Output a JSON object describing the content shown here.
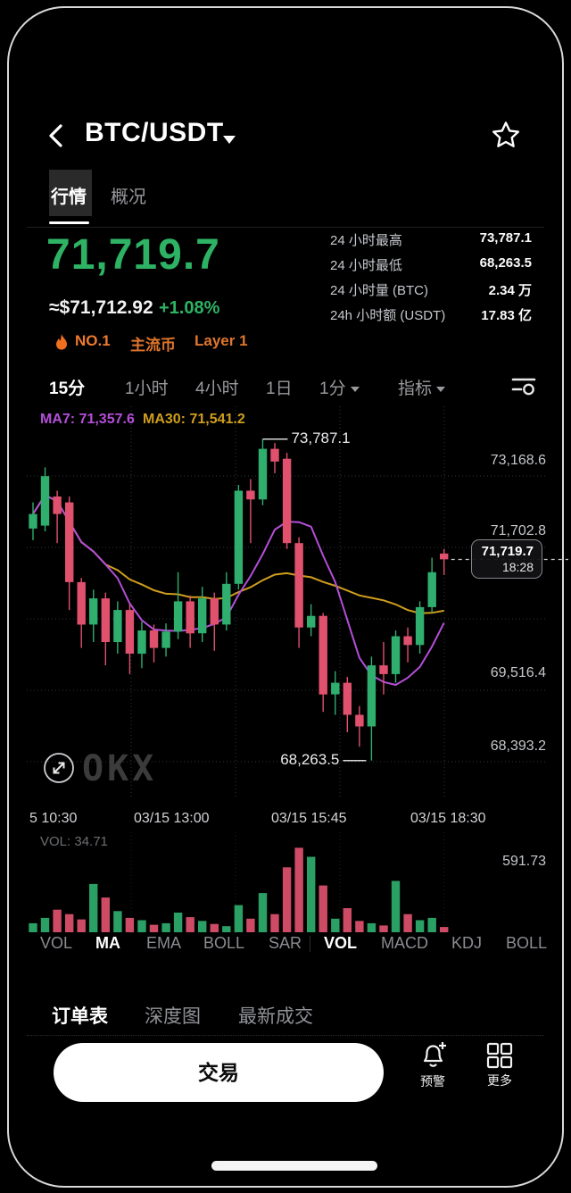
{
  "header": {
    "title": "BTC/USDT",
    "back_icon": "chevron-left",
    "star_icon": "star-outline"
  },
  "tabs": [
    {
      "label": "行情",
      "active": true
    },
    {
      "label": "概况",
      "active": false
    }
  ],
  "price": {
    "last": "71,719.7",
    "fiat": "≈$71,712.92",
    "change": "+1.08%"
  },
  "badges": [
    {
      "label": "NO.1",
      "icon": "flame-icon"
    },
    {
      "label": "主流币"
    },
    {
      "label": "Layer 1"
    }
  ],
  "stats": [
    {
      "label": "24 小时最高",
      "value": "73,787.1"
    },
    {
      "label": "24 小时最低",
      "value": "68,263.5"
    },
    {
      "label": "24 小时量 (BTC)",
      "value": "2.34 万"
    },
    {
      "label": "24h 小时额 (USDT)",
      "value": "17.83 亿"
    }
  ],
  "timeframes": [
    {
      "label": "15分",
      "active": true
    },
    {
      "label": "1小时"
    },
    {
      "label": "4小时"
    },
    {
      "label": "1日"
    },
    {
      "label": "1分",
      "caret": true
    },
    {
      "label": "指标",
      "caret": true
    }
  ],
  "chart": {
    "legend": [
      {
        "label": "MA7: 71,357.6",
        "color": "#b44fd8"
      },
      {
        "label": "MA30: 71,541.2",
        "color": "#cf9e1c"
      }
    ],
    "y_axis_labels": [
      "73,168.6",
      "71,702.8",
      "69,516.4",
      "68,393.2"
    ],
    "x_axis_labels": [
      "5 10:30",
      "03/15 13:00",
      "03/15 15:45",
      "03/15 18:30"
    ],
    "price_tag": {
      "price": "71,719.7",
      "time": "18:28"
    },
    "watermark": "OKX",
    "volume_label": "VOL: 34.71",
    "volume_axis_max_label": "591.73"
  },
  "chart_data": {
    "type": "candlestick",
    "interval": "15m",
    "ylim": [
      67600,
      74350
    ],
    "vol_max": 591.73,
    "colors": {
      "up": "#2fae6e",
      "down": "#e0516e",
      "ma7": "#b44fd8",
      "ma30": "#cf9e1c"
    },
    "annotations": {
      "high": {
        "index": 19,
        "price": 73787.1,
        "label": "73,787.1"
      },
      "low": {
        "index": 28,
        "price": 68263.5,
        "label": "68,263.5"
      }
    },
    "last_close": 71719.7,
    "candles": [
      [
        72250,
        72700,
        72050,
        72500
      ],
      [
        72300,
        73300,
        72200,
        73150
      ],
      [
        72800,
        72900,
        72000,
        72500
      ],
      [
        72700,
        72800,
        70850,
        71330
      ],
      [
        71330,
        71400,
        70200,
        70600
      ],
      [
        70600,
        71200,
        70300,
        71050
      ],
      [
        71050,
        71150,
        69900,
        70300
      ],
      [
        70300,
        71000,
        70100,
        70850
      ],
      [
        70850,
        70950,
        69750,
        70100
      ],
      [
        70100,
        70650,
        69850,
        70500
      ],
      [
        70500,
        70600,
        69950,
        70200
      ],
      [
        70200,
        70620,
        70050,
        70480
      ],
      [
        70480,
        71500,
        70350,
        71000
      ],
      [
        71000,
        71100,
        70200,
        70450
      ],
      [
        70450,
        71250,
        70300,
        71050
      ],
      [
        71050,
        71150,
        70150,
        70600
      ],
      [
        70600,
        71500,
        70500,
        71300
      ],
      [
        71300,
        73000,
        71200,
        72900
      ],
      [
        72900,
        73100,
        72000,
        72750
      ],
      [
        72750,
        73787.1,
        72650,
        73620
      ],
      [
        73620,
        73720,
        73200,
        73400
      ],
      [
        73450,
        73550,
        71900,
        72000
      ],
      [
        72000,
        72100,
        70200,
        70550
      ],
      [
        70550,
        70950,
        70400,
        70750
      ],
      [
        70750,
        70800,
        69100,
        69400
      ],
      [
        69400,
        69800,
        69050,
        69600
      ],
      [
        69600,
        69700,
        68750,
        69050
      ],
      [
        69050,
        69200,
        68500,
        68850
      ],
      [
        68850,
        70050,
        68263.5,
        69900
      ],
      [
        69900,
        70300,
        69400,
        69750
      ],
      [
        69750,
        70500,
        69600,
        70400
      ],
      [
        70400,
        70550,
        69950,
        70250
      ],
      [
        70250,
        71000,
        70100,
        70900
      ],
      [
        70900,
        71750,
        70800,
        71500
      ],
      [
        71820,
        71900,
        71450,
        71719.7
      ]
    ],
    "volumes": [
      60,
      95,
      150,
      120,
      85,
      320,
      230,
      140,
      95,
      80,
      50,
      60,
      130,
      100,
      75,
      55,
      40,
      180,
      90,
      260,
      120,
      430,
      560,
      500,
      310,
      90,
      160,
      75,
      60,
      45,
      340,
      120,
      80,
      95,
      34.71
    ],
    "ma_windows": [
      7,
      30
    ]
  },
  "indicator_tabs": [
    {
      "label": "VOL"
    },
    {
      "label": "MA",
      "active": true
    },
    {
      "label": "EMA"
    },
    {
      "label": "BOLL"
    },
    {
      "label": "SAR"
    },
    {
      "label": "VOL",
      "active": true
    },
    {
      "label": "MACD"
    },
    {
      "label": "KDJ"
    },
    {
      "label": "BOLL"
    }
  ],
  "bottom_tabs": [
    {
      "label": "订单表",
      "active": true
    },
    {
      "label": "深度图"
    },
    {
      "label": "最新成交"
    }
  ],
  "actions": {
    "trade": "交易",
    "alert": "预警",
    "more": "更多"
  }
}
